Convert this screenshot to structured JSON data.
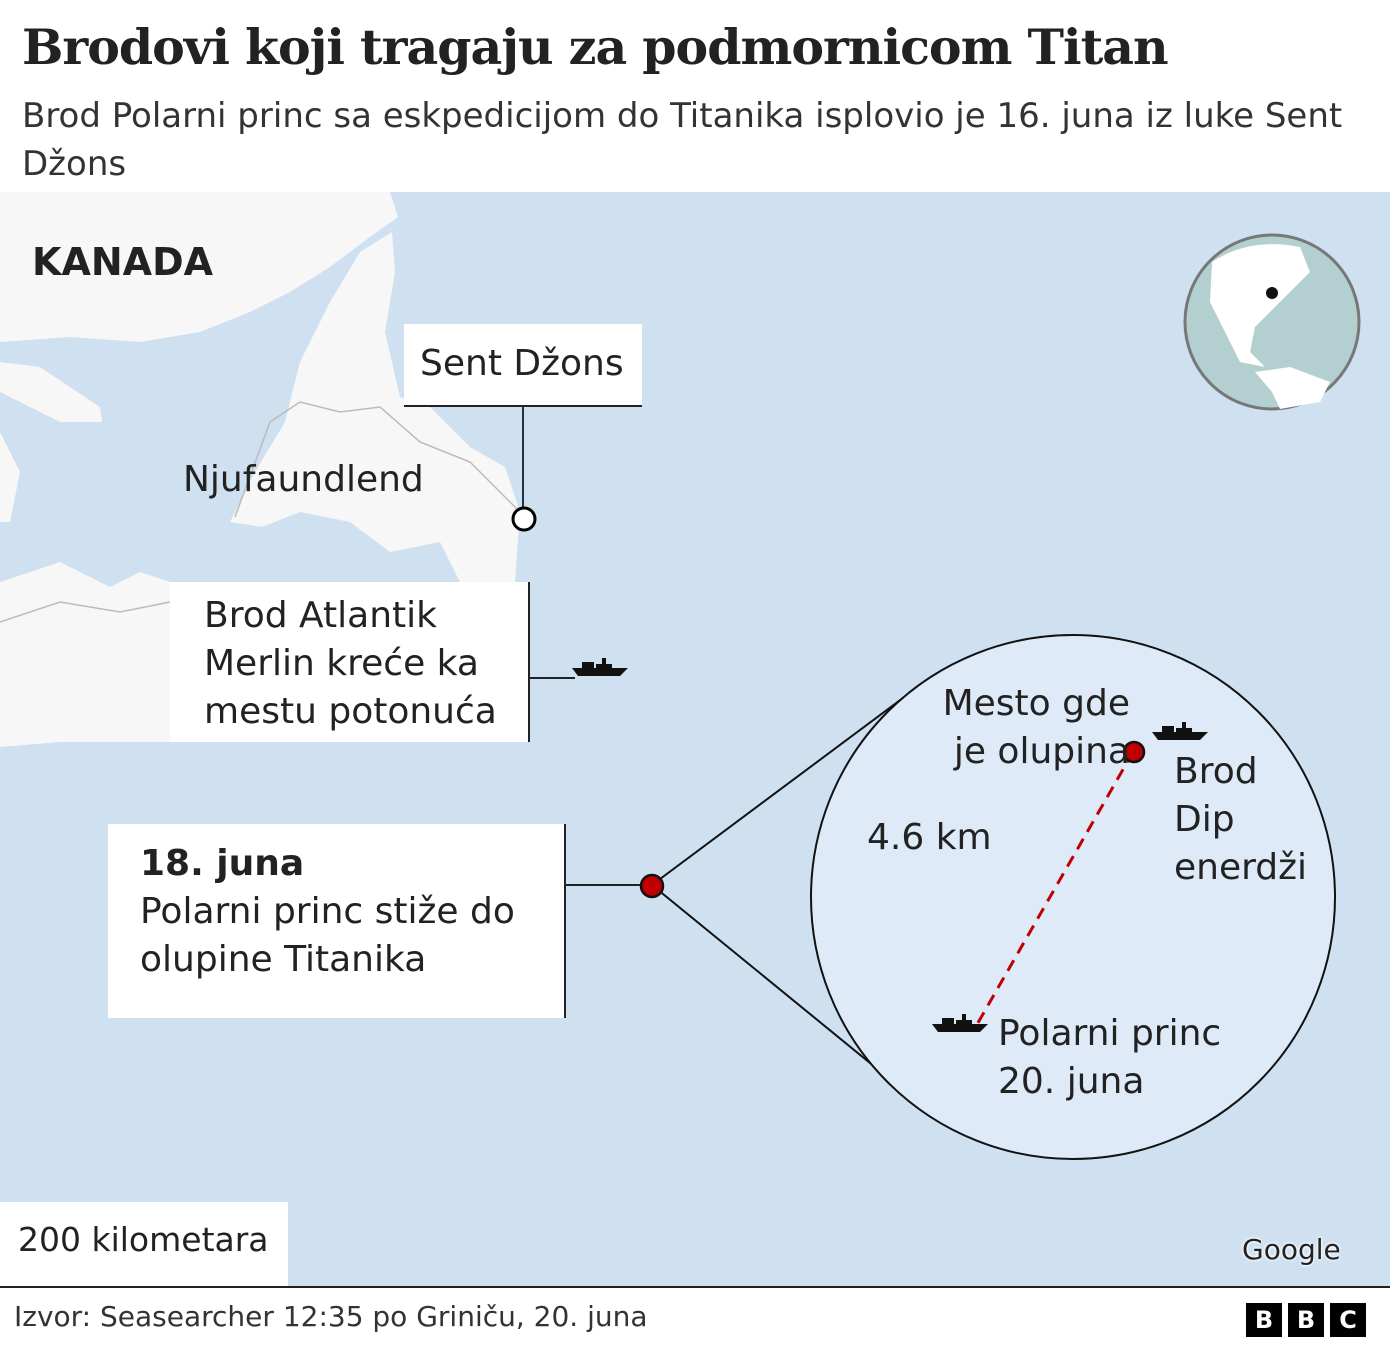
{
  "title": "Brodovi koji tragaju za podmornicom Titan",
  "subtitle": "Brod Polarni princ sa eskpedicijom do Titanika isplovio je 16. juna iz luke Sent Džons",
  "map": {
    "colors": {
      "sea": "#cfe0f1",
      "land": "#f7f7f7",
      "marker": "#c00000",
      "inset": "#deeaf7",
      "globe_sea": "#b3cfcf"
    },
    "country_label": "KANADA",
    "island_label": "Njufaundlend",
    "port_label": "Sent Džons",
    "atlantic_merlin": "Brod Atlantik Merlin kreće ka mestu potonuća",
    "arrival_date": "18. juna",
    "arrival_text": "Polarni princ stiže do olupine Titanika",
    "inset": {
      "wreck_label": "Mesto gde je olupina",
      "distance": "4.6 km",
      "deep_energy": "Brod Dip enerdži",
      "polar_prince": "Polarni princ 20. juna"
    },
    "scale": "200 kilometara",
    "attribution": "Google",
    "icons": [
      "ship-icon",
      "globe-locator-icon"
    ]
  },
  "footer": {
    "source": "Izvor: Seasearcher 12:35 po Griniču, 20. juna",
    "logo": "BBC"
  }
}
